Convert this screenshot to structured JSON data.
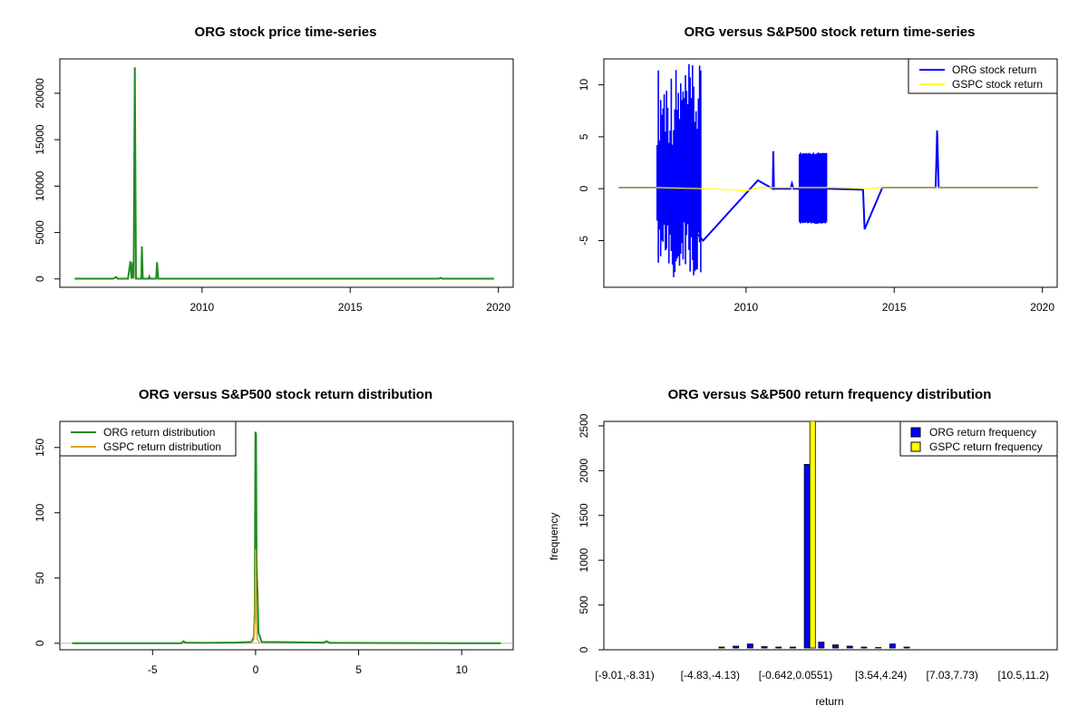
{
  "chart_data": [
    {
      "type": "line",
      "title": "ORG stock price time-series",
      "xlabel": "",
      "ylabel": "",
      "xlim": [
        2005.2,
        2020.5
      ],
      "ylim": [
        -900,
        23700
      ],
      "x_ticks": [
        "2010",
        "2015",
        "2020"
      ],
      "y_ticks": [
        "0",
        "5000",
        "10000",
        "15000",
        "20000"
      ],
      "colors": {
        "series": "#228b22"
      },
      "series": [
        {
          "points": [
            [
              2005.7,
              30
            ],
            [
              2007.0,
              30
            ],
            [
              2007.1,
              200
            ],
            [
              2007.15,
              30
            ],
            [
              2007.5,
              30
            ],
            [
              2007.58,
              1900
            ],
            [
              2007.62,
              30
            ],
            [
              2007.66,
              1800
            ],
            [
              2007.69,
              30
            ],
            [
              2007.73,
              22800
            ],
            [
              2007.77,
              30
            ],
            [
              2007.95,
              30
            ],
            [
              2007.97,
              3500
            ],
            [
              2008.0,
              30
            ],
            [
              2008.2,
              30
            ],
            [
              2008.22,
              250
            ],
            [
              2008.25,
              30
            ],
            [
              2008.45,
              30
            ],
            [
              2008.48,
              1800
            ],
            [
              2008.52,
              30
            ],
            [
              2018.0,
              30
            ],
            [
              2018.05,
              120
            ],
            [
              2018.1,
              30
            ],
            [
              2019.85,
              30
            ]
          ]
        }
      ]
    },
    {
      "type": "line",
      "title": "ORG versus S&P500 stock return time-series",
      "xlabel": "",
      "ylabel": "",
      "xlim": [
        2005.2,
        2020.5
      ],
      "ylim": [
        -9.5,
        12.5
      ],
      "x_ticks": [
        "2010",
        "2015",
        "2020"
      ],
      "y_ticks": [
        "-5",
        "0",
        "5",
        "10"
      ],
      "legend": {
        "position": "top-right",
        "entries": [
          "ORG stock return",
          "GSPC stock return"
        ]
      },
      "colors": {
        "org": "#0000ff",
        "gspc": "#ffff00"
      },
      "series": [
        {
          "name": "ORG stock return",
          "bands": [
            {
              "x0": 2007.0,
              "x1": 2008.5,
              "low": -8.8,
              "high": 12.0
            },
            {
              "x0": 2011.8,
              "x1": 2012.75,
              "low": -3.4,
              "high": 3.5
            }
          ],
          "points": [
            [
              2005.7,
              0.1
            ],
            [
              2007.0,
              0.1
            ],
            [
              2008.55,
              -5.0
            ],
            [
              2010.4,
              0.8
            ],
            [
              2010.9,
              0.0
            ],
            [
              2010.92,
              3.6
            ],
            [
              2010.94,
              0.0
            ],
            [
              2011.5,
              0.0
            ],
            [
              2011.55,
              0.5
            ],
            [
              2011.6,
              0.0
            ],
            [
              2012.8,
              0.0
            ],
            [
              2013.95,
              -0.1
            ],
            [
              2014.0,
              -3.9
            ],
            [
              2014.6,
              0.1
            ],
            [
              2016.4,
              0.1
            ],
            [
              2016.45,
              5.6
            ],
            [
              2016.5,
              0.1
            ],
            [
              2019.85,
              0.1
            ]
          ]
        },
        {
          "name": "GSPC stock return",
          "points": [
            [
              2005.7,
              0.1
            ],
            [
              2007.0,
              0.1
            ],
            [
              2008.5,
              0.0
            ],
            [
              2009.5,
              -0.1
            ],
            [
              2010.0,
              -0.2
            ],
            [
              2010.5,
              0.1
            ],
            [
              2011.5,
              0.1
            ],
            [
              2013.0,
              0.1
            ],
            [
              2014.0,
              0.0
            ],
            [
              2014.5,
              0.1
            ],
            [
              2016.0,
              0.1
            ],
            [
              2018.0,
              0.1
            ],
            [
              2019.85,
              0.1
            ]
          ]
        }
      ]
    },
    {
      "type": "line",
      "title": "ORG versus S&P500 stock return distribution",
      "xlabel": "",
      "ylabel": "",
      "xlim": [
        -9.5,
        12.5
      ],
      "ylim": [
        -5,
        170
      ],
      "x_ticks": [
        "-5",
        "0",
        "5",
        "10"
      ],
      "y_ticks": [
        "0",
        "50",
        "100",
        "150"
      ],
      "legend": {
        "position": "top-left",
        "entries": [
          "ORG return distribution",
          "GSPC return distribution"
        ]
      },
      "colors": {
        "org": "#228b22",
        "gspc": "#daa520"
      },
      "series": [
        {
          "name": "ORG return distribution",
          "points": [
            [
              -8.9,
              0
            ],
            [
              -3.6,
              0
            ],
            [
              -3.5,
              1.5
            ],
            [
              -3.4,
              0.5
            ],
            [
              -2.5,
              0.3
            ],
            [
              -1.0,
              0.5
            ],
            [
              -0.2,
              1.0
            ],
            [
              -0.08,
              5
            ],
            [
              -0.04,
              25
            ],
            [
              -0.01,
              162
            ],
            [
              0.02,
              160
            ],
            [
              0.05,
              60
            ],
            [
              0.09,
              38
            ],
            [
              0.14,
              8
            ],
            [
              0.3,
              1.0
            ],
            [
              1.5,
              0.8
            ],
            [
              3.3,
              0.5
            ],
            [
              3.45,
              1.5
            ],
            [
              3.6,
              0.3
            ],
            [
              6.0,
              0.2
            ],
            [
              11.9,
              0
            ]
          ]
        },
        {
          "name": "GSPC return distribution",
          "points": [
            [
              -0.2,
              0
            ],
            [
              -0.08,
              3
            ],
            [
              -0.03,
              20
            ],
            [
              0.0,
              72
            ],
            [
              0.03,
              20
            ],
            [
              0.08,
              3
            ],
            [
              0.2,
              0
            ]
          ]
        }
      ]
    },
    {
      "type": "bar",
      "title": "ORG versus S&P500 return frequency distribution",
      "xlabel": "return",
      "ylabel": "frequency",
      "ylim": [
        0,
        2550
      ],
      "y_ticks": [
        "0",
        "500",
        "1000",
        "1500",
        "2000",
        "2500"
      ],
      "category_labels": [
        {
          "index": 0,
          "text": "[-9.01,-8.31)"
        },
        {
          "index": 6,
          "text": "[-4.83,-4.13)"
        },
        {
          "index": 12,
          "text": "[-0.642,0.0551)"
        },
        {
          "index": 18,
          "text": "[3.54,4.24)"
        },
        {
          "index": 23,
          "text": "[7.03,7.73)"
        },
        {
          "index": 28,
          "text": "[10.5,11.2)"
        }
      ],
      "legend": {
        "position": "top-right",
        "entries": [
          "ORG return frequency",
          "GSPC return frequency"
        ]
      },
      "colors": {
        "org": "#0000ff",
        "gspc": "#ffff00"
      },
      "series": [
        {
          "name": "ORG return frequency",
          "values": [
            15,
            18,
            14,
            10,
            12,
            15,
            20,
            30,
            40,
            65,
            35,
            30,
            30,
            2070,
            85,
            55,
            40,
            30,
            25,
            65,
            30,
            20,
            15,
            8,
            10,
            8,
            6,
            5,
            4,
            4,
            3
          ]
        },
        {
          "name": "GSPC return frequency",
          "values": [
            0,
            0,
            0,
            0,
            0,
            0,
            0,
            0,
            0,
            0,
            0,
            0,
            0,
            2600,
            0,
            0,
            0,
            0,
            0,
            0,
            0,
            0,
            0,
            0,
            0,
            0,
            0,
            0,
            0,
            0,
            0
          ]
        }
      ]
    }
  ]
}
